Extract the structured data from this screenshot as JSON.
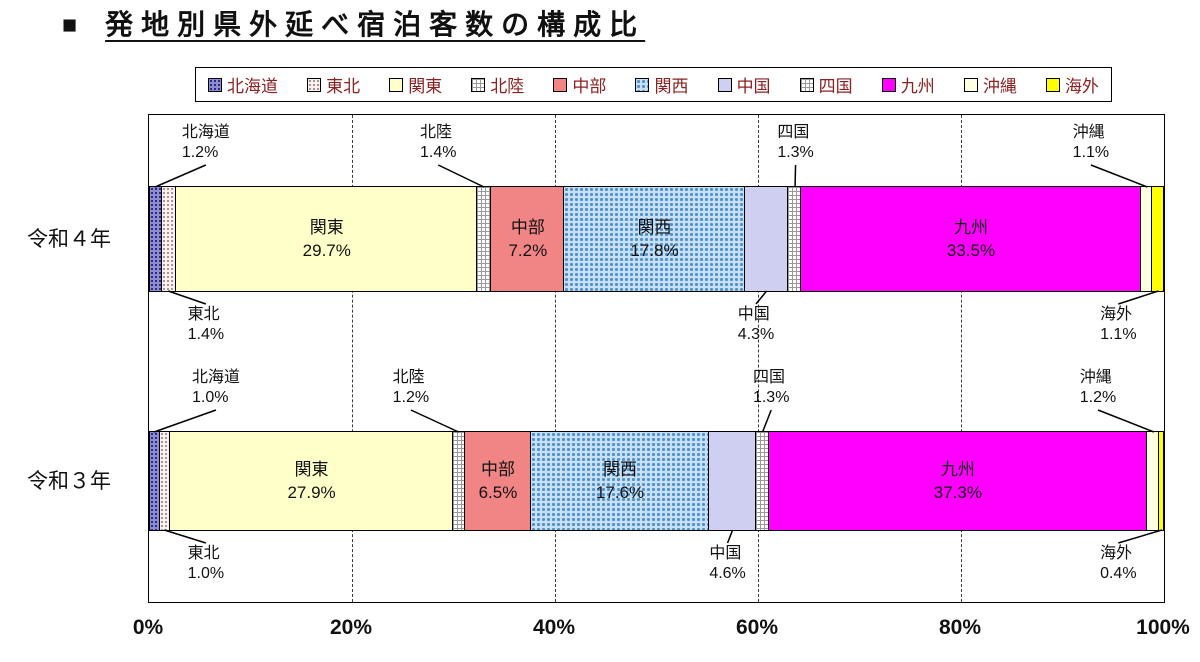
{
  "title_bullet": "■",
  "colors": {
    "legend_text": "#8b2121",
    "text": "#111111",
    "border": "#000000"
  },
  "chart_data": {
    "type": "bar",
    "stacked": true,
    "orientation": "horizontal",
    "title": "発地別県外延べ宿泊客数の構成比",
    "categories": [
      "令和４年",
      "令和３年"
    ],
    "value_unit": "%",
    "xlim": [
      0,
      100
    ],
    "x_ticks": [
      "0%",
      "20%",
      "40%",
      "60%",
      "80%",
      "100%"
    ],
    "gridlines": {
      "style": "dashed",
      "positions_pct": [
        20,
        40,
        60,
        80
      ]
    },
    "legend_position": "top",
    "series": [
      {
        "name": "北海道",
        "values": [
          1.2,
          1.0
        ],
        "color": "#8d8dd0",
        "pattern": "dots-dark",
        "callout": "above"
      },
      {
        "name": "東北",
        "values": [
          1.4,
          1.0
        ],
        "color": "#faf0f0",
        "pattern": "dots-gray",
        "callout": "below"
      },
      {
        "name": "関東",
        "values": [
          29.7,
          27.9
        ],
        "color": "#ffffc9",
        "pattern": null,
        "callout": "inside"
      },
      {
        "name": "北陸",
        "values": [
          1.4,
          1.2
        ],
        "color": "#ffffff",
        "pattern": "grid",
        "callout": "above"
      },
      {
        "name": "中部",
        "values": [
          7.2,
          6.5
        ],
        "color": "#f18585",
        "pattern": null,
        "callout": "inside"
      },
      {
        "name": "関西",
        "values": [
          17.8,
          17.6
        ],
        "color": "#c9e0f4",
        "pattern": "dots-blue",
        "callout": "inside"
      },
      {
        "name": "中国",
        "values": [
          4.3,
          4.6
        ],
        "color": "#cfcff2",
        "pattern": null,
        "callout": "below"
      },
      {
        "name": "四国",
        "values": [
          1.3,
          1.3
        ],
        "color": "#ffffff",
        "pattern": "grid",
        "callout": "above"
      },
      {
        "name": "九州",
        "values": [
          33.5,
          37.3
        ],
        "color": "#ff00ff",
        "pattern": null,
        "callout": "inside"
      },
      {
        "name": "沖縄",
        "values": [
          1.1,
          1.2
        ],
        "color": "#ffffe1",
        "pattern": null,
        "callout": "above"
      },
      {
        "name": "海外",
        "values": [
          1.1,
          0.4
        ],
        "color": "#ffff00",
        "pattern": null,
        "callout": "below"
      }
    ]
  }
}
